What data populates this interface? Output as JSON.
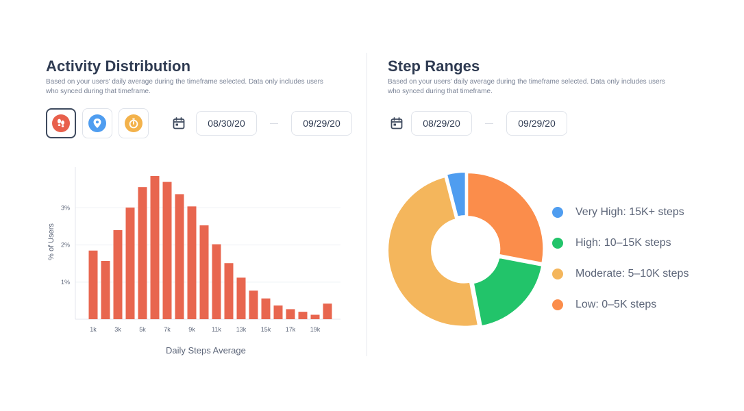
{
  "left": {
    "title": "Activity Distribution",
    "subtitle": "Based on your users' daily average during the timeframe selected. Data only includes users who synced during that timeframe.",
    "metric_buttons": [
      {
        "icon": "footsteps-icon",
        "color": "#e8604c",
        "active": true
      },
      {
        "icon": "location-pin-icon",
        "color": "#4f9df0",
        "active": false
      },
      {
        "icon": "stopwatch-icon",
        "color": "#f3b24b",
        "active": false
      }
    ],
    "date_start": "08/30/20",
    "date_end": "09/29/20"
  },
  "right": {
    "title": "Step Ranges",
    "subtitle": "Based on your users' daily average during the timeframe selected. Data only includes users who synced during that timeframe.",
    "date_start": "08/29/20",
    "date_end": "09/29/20"
  },
  "colors": {
    "bar": "#e8664f",
    "very_high": "#4f9df0",
    "high": "#22c46a",
    "moderate": "#f4b65c",
    "low": "#fb8d4b"
  },
  "chart_data": [
    {
      "type": "bar",
      "x": [
        1000,
        2000,
        3000,
        4000,
        5000,
        6000,
        7000,
        8000,
        9000,
        10000,
        11000,
        12000,
        13000,
        14000,
        15000,
        16000,
        17000,
        18000,
        19000,
        20000
      ],
      "values": [
        1.85,
        1.57,
        2.4,
        3.01,
        3.56,
        3.86,
        3.7,
        3.37,
        3.04,
        2.53,
        2.02,
        1.51,
        1.12,
        0.77,
        0.56,
        0.37,
        0.27,
        0.2,
        0.12,
        0.42
      ],
      "tick_labels": [
        "1k",
        "3k",
        "5k",
        "7k",
        "9k",
        "11k",
        "13k",
        "15k",
        "17k",
        "19k"
      ],
      "y_ticks": [
        "1%",
        "2%",
        "3%"
      ],
      "xlabel": "Daily Steps Average",
      "ylabel": "% of Users",
      "ylim": [
        0,
        4
      ],
      "grid": true
    },
    {
      "type": "pie",
      "donut": true,
      "slices": [
        {
          "label": "Very High: 15K+ steps",
          "value": 4,
          "color": "#4f9df0"
        },
        {
          "label": "High: 10–15K steps",
          "value": 19,
          "color": "#22c46a"
        },
        {
          "label": "Moderate: 5–10K steps",
          "value": 49,
          "color": "#f4b65c"
        },
        {
          "label": "Low: 0–5K steps",
          "value": 28,
          "color": "#fb8d4b"
        }
      ],
      "legend_position": "right"
    }
  ]
}
